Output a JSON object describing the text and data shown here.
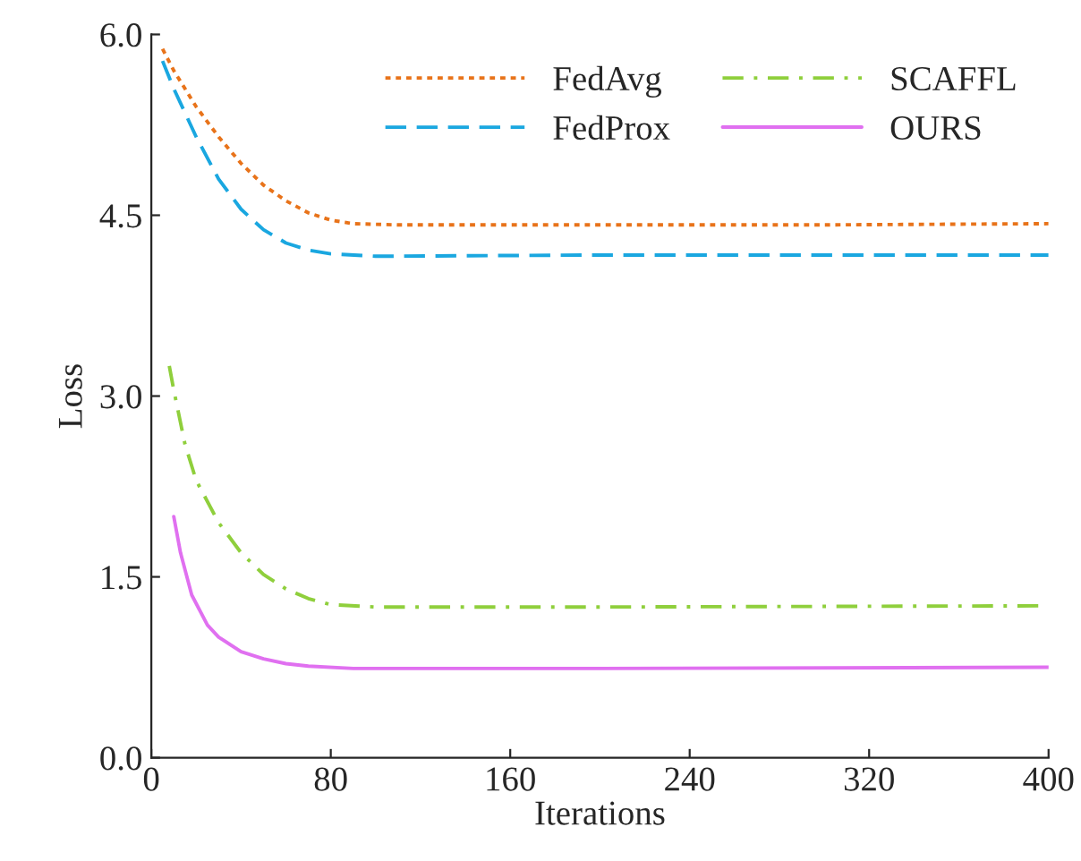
{
  "chart_data": {
    "type": "line",
    "xlabel": "Iterations",
    "ylabel": "Loss",
    "xlim": [
      0,
      400
    ],
    "xticks": [
      0,
      80,
      160,
      240,
      320,
      400
    ],
    "ylim": [
      0,
      6.0
    ],
    "yticks": [
      {
        "value": 0,
        "label": "0.0"
      },
      {
        "value": 1.5,
        "label": "1.5"
      },
      {
        "value": 3.0,
        "label": "3.0"
      },
      {
        "value": 4.5,
        "label": "4.5"
      },
      {
        "value": 6.0,
        "label": "6.0"
      }
    ],
    "grid": false,
    "legend": "top right",
    "series": [
      {
        "name": "FedAvg",
        "color": "#e8731a",
        "line_style": "dotted",
        "x": [
          5,
          10,
          20,
          30,
          40,
          50,
          60,
          70,
          80,
          90,
          110,
          200,
          300,
          400
        ],
        "values": [
          5.88,
          5.7,
          5.4,
          5.15,
          4.93,
          4.75,
          4.62,
          4.52,
          4.46,
          4.43,
          4.42,
          4.42,
          4.42,
          4.43
        ]
      },
      {
        "name": "FedProx",
        "color": "#1aa7e0",
        "line_style": "dashed",
        "x": [
          5,
          10,
          20,
          30,
          40,
          50,
          60,
          70,
          80,
          100,
          200,
          300,
          400
        ],
        "values": [
          5.78,
          5.55,
          5.15,
          4.8,
          4.55,
          4.38,
          4.27,
          4.21,
          4.18,
          4.16,
          4.17,
          4.17,
          4.17
        ]
      },
      {
        "name": "SCAFFL",
        "color": "#8fcf3c",
        "line_style": "dashdot",
        "x": [
          8,
          10,
          15,
          20,
          30,
          40,
          50,
          60,
          70,
          80,
          100,
          200,
          400
        ],
        "values": [
          3.25,
          3.05,
          2.6,
          2.3,
          1.95,
          1.7,
          1.52,
          1.4,
          1.32,
          1.27,
          1.25,
          1.25,
          1.26
        ]
      },
      {
        "name": "OURS",
        "color": "#e070f0",
        "line_style": "solid",
        "x": [
          10,
          13,
          18,
          25,
          30,
          40,
          50,
          60,
          70,
          90,
          200,
          400
        ],
        "values": [
          2.0,
          1.7,
          1.35,
          1.1,
          1.0,
          0.88,
          0.82,
          0.78,
          0.76,
          0.74,
          0.74,
          0.75
        ]
      }
    ]
  }
}
